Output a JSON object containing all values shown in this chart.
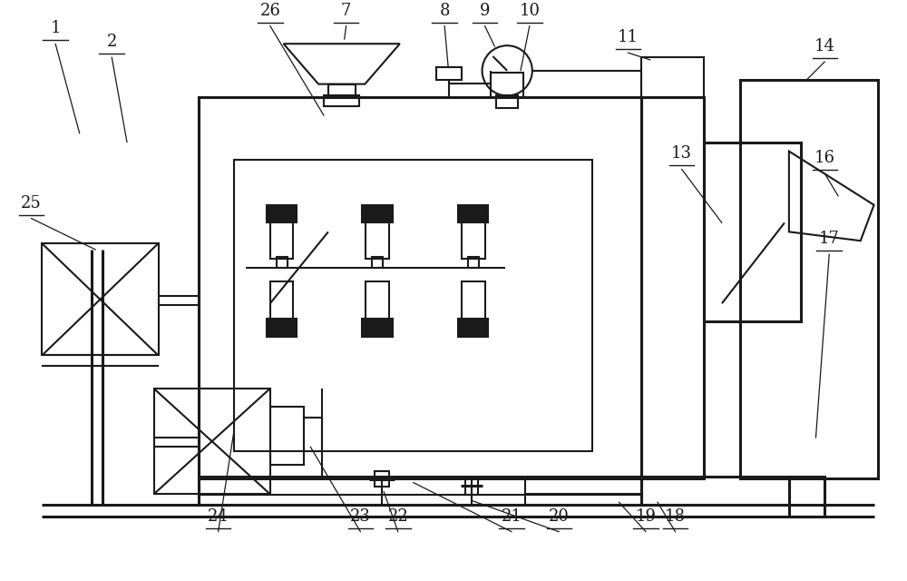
{
  "bg_color": "#ffffff",
  "lc": "#1a1a1a",
  "lw": 1.5,
  "lw2": 2.2,
  "lw3": 3.0
}
